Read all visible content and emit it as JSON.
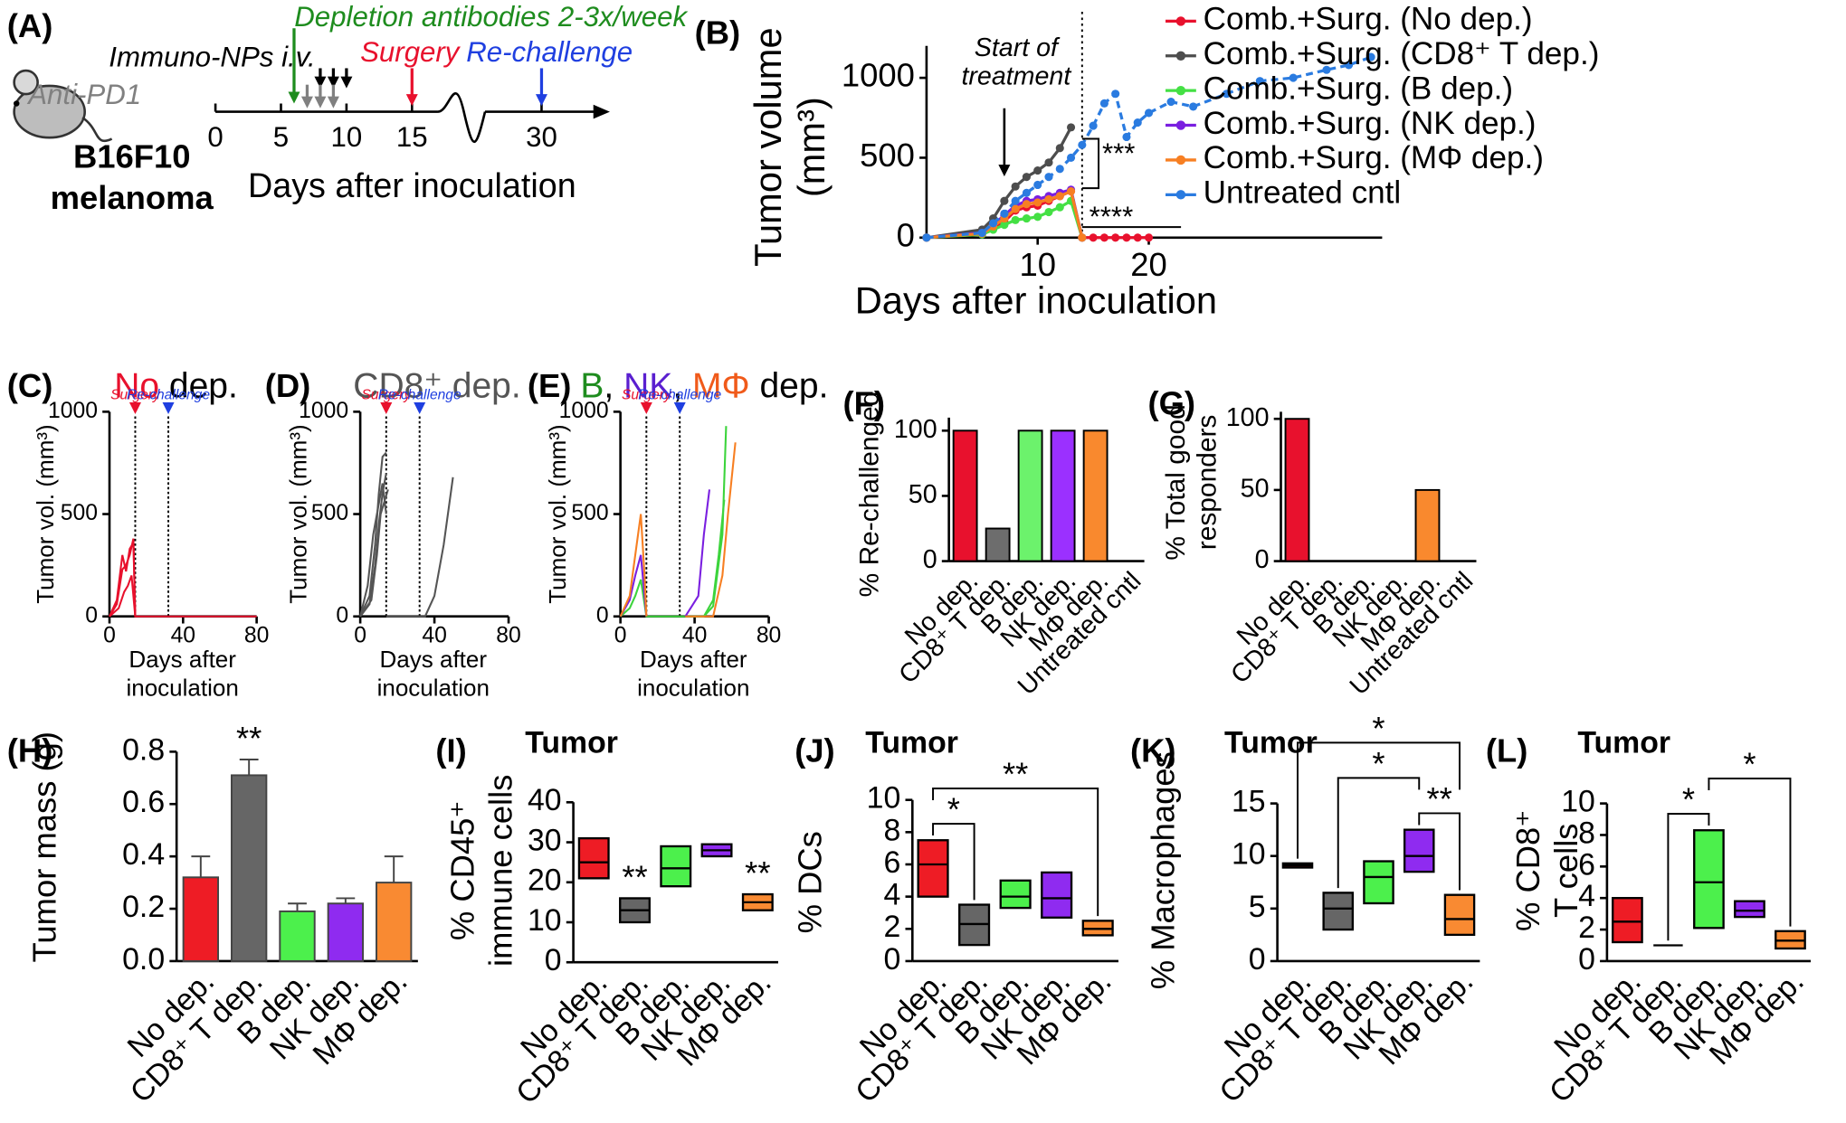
{
  "schematic": {
    "panel": "(A)",
    "model": [
      "B16F10",
      "melanoma"
    ],
    "xlabel": "Days after inoculation",
    "ticks": [
      0,
      5,
      10,
      15,
      30
    ],
    "events": [
      {
        "label": "Depletion antibodies 2-3x/week",
        "color": "#1e8c1e",
        "days": [
          6
        ]
      },
      {
        "label": "Immuno-NPs i.v.",
        "color": "#000000",
        "days": [
          8,
          9,
          10
        ]
      },
      {
        "label": "Anti-PD1",
        "color": "#808080",
        "days": [
          7,
          8,
          9
        ]
      },
      {
        "label": "Surgery",
        "color": "#e8112d",
        "days": [
          15
        ]
      },
      {
        "label": "Re-challenge",
        "color": "#1f3fe0",
        "days": [
          30
        ]
      }
    ]
  },
  "chart_data": [
    {
      "type": "line",
      "panel": "(B)",
      "ylabel": [
        "Tumor volume",
        "(mm³)"
      ],
      "xlabel": [
        "Days after inoculation"
      ],
      "xlim": [
        0,
        41
      ],
      "ylim": [
        0,
        1200
      ],
      "xticks": [
        10,
        20
      ],
      "yticks": [
        0,
        500,
        1000
      ],
      "dots": true,
      "legend": "right",
      "vline": 14,
      "annotation": {
        "text": [
          "Start of",
          "treatment"
        ],
        "x": 7
      },
      "significance": [
        "***",
        "****"
      ],
      "series": [
        {
          "name": "Comb.+Surg. (No dep.)",
          "color": "#e8112d",
          "x": [
            0,
            5,
            6,
            7,
            8,
            9,
            10,
            11,
            12,
            13,
            14,
            15,
            16,
            17,
            18,
            19,
            20
          ],
          "values": [
            0,
            30,
            60,
            100,
            170,
            190,
            200,
            230,
            260,
            290,
            0,
            0,
            0,
            0,
            0,
            0,
            0
          ]
        },
        {
          "name": "Comb.+Surg. (CD8⁺ T dep.)",
          "color": "#4d4d4d",
          "x": [
            0,
            5,
            6,
            7,
            8,
            9,
            10,
            11,
            12,
            13
          ],
          "values": [
            0,
            50,
            120,
            230,
            320,
            380,
            420,
            470,
            560,
            690
          ]
        },
        {
          "name": "Comb.+Surg. (B dep.)",
          "color": "#44e044",
          "x": [
            0,
            5,
            6,
            7,
            8,
            9,
            10,
            11,
            12,
            13,
            14
          ],
          "values": [
            0,
            20,
            50,
            80,
            110,
            120,
            130,
            160,
            190,
            230,
            0
          ]
        },
        {
          "name": "Comb.+Surg. (NK dep.)",
          "color": "#7a1fe0",
          "x": [
            0,
            5,
            6,
            7,
            8,
            9,
            10,
            11,
            12,
            13,
            14
          ],
          "values": [
            0,
            30,
            80,
            140,
            200,
            230,
            240,
            260,
            280,
            300,
            0
          ]
        },
        {
          "name": "Comb.+Surg. (MΦ dep.)",
          "color": "#f77f22",
          "x": [
            0,
            5,
            6,
            7,
            8,
            9,
            10,
            11,
            12,
            13,
            14
          ],
          "values": [
            0,
            25,
            70,
            120,
            180,
            210,
            220,
            240,
            260,
            290,
            0
          ]
        },
        {
          "name": "Untreated cntl",
          "color": "#2a7be0",
          "line_style": "dashed",
          "x": [
            0,
            5,
            6,
            7,
            8,
            9,
            10,
            11,
            12,
            13,
            14,
            15,
            16,
            17,
            18,
            19,
            20,
            22,
            24,
            27,
            30,
            33,
            36,
            38,
            40
          ],
          "values": [
            0,
            30,
            90,
            150,
            230,
            280,
            330,
            380,
            430,
            500,
            580,
            700,
            840,
            900,
            630,
            720,
            780,
            850,
            820,
            900,
            980,
            1000,
            1050,
            1080,
            1130
          ]
        }
      ]
    },
    {
      "type": "line",
      "panel": "(C)",
      "title_parts": [
        {
          "text": "No",
          "color": "#e8112d"
        },
        {
          "text": " dep.",
          "color": "#000000"
        }
      ],
      "ylabel": [
        "Tumor vol. (mm³)"
      ],
      "xlabel": [
        "Days after",
        "inoculation"
      ],
      "xlim": [
        0,
        80
      ],
      "ylim": [
        0,
        1000
      ],
      "xticks": [
        0,
        40,
        80
      ],
      "yticks": [
        0,
        500,
        1000
      ],
      "markers": [
        {
          "x": 14,
          "label": "Surgery",
          "color": "#e8112d"
        },
        {
          "x": 32,
          "label": "Re-challenge",
          "color": "#1f3fe0"
        }
      ],
      "series": [
        {
          "color": "#e8112d",
          "x": [
            0,
            4,
            7,
            9,
            11,
            13,
            14,
            80
          ],
          "values": [
            0,
            60,
            230,
            250,
            300,
            380,
            0,
            0
          ]
        },
        {
          "color": "#e8112d",
          "x": [
            0,
            4,
            7,
            9,
            11,
            13,
            14
          ],
          "values": [
            0,
            80,
            300,
            220,
            330,
            360,
            0
          ]
        },
        {
          "color": "#e8112d",
          "x": [
            0,
            5,
            8,
            10,
            12,
            14
          ],
          "values": [
            0,
            40,
            120,
            150,
            200,
            0
          ]
        }
      ]
    },
    {
      "type": "line",
      "panel": "(D)",
      "title_parts": [
        {
          "text": "CD8⁺ dep.",
          "color": "#555555"
        }
      ],
      "ylabel": [
        "Tumor vol. (mm³)"
      ],
      "xlabel": [
        "Days after",
        "inoculation"
      ],
      "xlim": [
        0,
        80
      ],
      "ylim": [
        0,
        1000
      ],
      "xticks": [
        0,
        40,
        80
      ],
      "yticks": [
        0,
        500,
        1000
      ],
      "markers": [
        {
          "x": 14,
          "label": "Surgery",
          "color": "#e8112d"
        },
        {
          "x": 32,
          "label": "Re-challenge",
          "color": "#1f3fe0"
        }
      ],
      "series": [
        {
          "color": "#555555",
          "x": [
            0,
            5,
            8,
            10,
            12,
            14
          ],
          "values": [
            0,
            100,
            350,
            600,
            780,
            800
          ]
        },
        {
          "color": "#555555",
          "x": [
            0,
            5,
            8,
            10,
            12,
            14
          ],
          "values": [
            0,
            60,
            250,
            450,
            600,
            700
          ]
        },
        {
          "color": "#555555",
          "x": [
            0,
            6,
            9,
            11,
            13,
            15
          ],
          "values": [
            0,
            80,
            300,
            500,
            560,
            620
          ]
        },
        {
          "color": "#555555",
          "x": [
            0,
            4,
            7,
            10,
            12,
            14
          ],
          "values": [
            0,
            150,
            400,
            550,
            650,
            500
          ]
        },
        {
          "color": "#555555",
          "x": [
            14,
            35,
            40,
            45,
            50
          ],
          "values": [
            0,
            0,
            100,
            350,
            680
          ]
        }
      ]
    },
    {
      "type": "line",
      "panel": "(E)",
      "title_parts": [
        {
          "text": "B",
          "color": "#1e8c1e"
        },
        {
          "text": ", ",
          "color": "#000000"
        },
        {
          "text": "NK",
          "color": "#5a1fd0"
        },
        {
          "text": ", ",
          "color": "#000000"
        },
        {
          "text": "MΦ",
          "color": "#f05a1a"
        },
        {
          "text": " dep.",
          "color": "#000000"
        }
      ],
      "ylabel": [
        "Tumor vol. (mm³)"
      ],
      "xlabel": [
        "Days after",
        "inoculation"
      ],
      "xlim": [
        0,
        80
      ],
      "ylim": [
        0,
        1000
      ],
      "xticks": [
        0,
        40,
        80
      ],
      "yticks": [
        0,
        500,
        1000
      ],
      "markers": [
        {
          "x": 14,
          "label": "Surgery",
          "color": "#e8112d"
        },
        {
          "x": 32,
          "label": "Re-challenge",
          "color": "#1f3fe0"
        }
      ],
      "series": [
        {
          "color": "#3cd43c",
          "x": [
            0,
            5,
            8,
            11,
            14,
            35,
            45,
            50,
            55,
            57
          ],
          "values": [
            0,
            40,
            100,
            180,
            0,
            0,
            0,
            50,
            400,
            930
          ]
        },
        {
          "color": "#3cd43c",
          "x": [
            35,
            45,
            50,
            53,
            56
          ],
          "values": [
            0,
            0,
            80,
            300,
            570
          ]
        },
        {
          "color": "#7a1fe0",
          "x": [
            0,
            5,
            8,
            11,
            14
          ],
          "values": [
            0,
            80,
            200,
            300,
            0
          ]
        },
        {
          "color": "#7a1fe0",
          "x": [
            35,
            42,
            45,
            48
          ],
          "values": [
            0,
            100,
            400,
            620
          ]
        },
        {
          "color": "#f77f22",
          "x": [
            0,
            5,
            8,
            11,
            13,
            14
          ],
          "values": [
            0,
            100,
            300,
            500,
            200,
            0
          ]
        },
        {
          "color": "#f77f22",
          "x": [
            35,
            50,
            55,
            58,
            62
          ],
          "values": [
            0,
            0,
            200,
            500,
            850
          ]
        }
      ]
    },
    {
      "type": "bar",
      "panel": "(F)",
      "ylabel": [
        "% Re-challenged"
      ],
      "categories": [
        "No dep.",
        "CD8⁺ T dep.",
        "B dep.",
        "NK dep.",
        "MΦ dep.",
        "Untreated cntl"
      ],
      "values": [
        100,
        25,
        100,
        100,
        100,
        0
      ],
      "colors": [
        "#e8112d",
        "#6d6d6d",
        "#6cf26c",
        "#9b30ff",
        "#f9892e",
        "#2a7be0"
      ],
      "outline": "#000000",
      "ylim": [
        0,
        110
      ],
      "yticks": [
        0,
        50,
        100
      ]
    },
    {
      "type": "bar",
      "panel": "(G)",
      "ylabel": [
        "% Total good",
        "responders"
      ],
      "categories": [
        "No dep.",
        "CD8⁺ T dep.",
        "B dep.",
        "NK dep.",
        "MΦ dep.",
        "Untreated cntl"
      ],
      "values": [
        100,
        0,
        0,
        0,
        50,
        0
      ],
      "colors": [
        "#e8112d",
        "#6d6d6d",
        "#6cf26c",
        "#9b30ff",
        "#f9892e",
        "#2a7be0"
      ],
      "outline": "#000000",
      "ylim": [
        0,
        105
      ],
      "yticks": [
        0,
        50,
        100
      ]
    },
    {
      "type": "bar",
      "panel": "(H)",
      "ylabel": [
        "Tumor mass (g)"
      ],
      "categories": [
        "No dep.",
        "CD8⁺ T dep.",
        "B dep.",
        "NK dep.",
        "MΦ dep."
      ],
      "values": [
        0.32,
        0.71,
        0.19,
        0.22,
        0.3
      ],
      "errors": [
        0.08,
        0.06,
        0.03,
        0.02,
        0.1
      ],
      "colors": [
        "#ee1c25",
        "#666666",
        "#4cf04c",
        "#8f2bf0",
        "#f98a32"
      ],
      "outline": "#444444",
      "ylim": [
        0,
        0.8
      ],
      "yticks": [
        {
          "value": 0,
          "label": "0.0"
        },
        0.2,
        0.4,
        0.6,
        0.8
      ],
      "sig": [
        {
          "category": "CD8⁺ T dep.",
          "label": "**"
        }
      ]
    },
    {
      "type": "box",
      "panel": "(I)",
      "title": "Tumor",
      "ylabel": [
        "% CD45⁺",
        "immune cells"
      ],
      "categories": [
        "No dep.",
        "CD8⁺ T dep.",
        "B dep.",
        "NK dep.",
        "MΦ dep."
      ],
      "low": [
        21,
        10,
        19,
        26.5,
        13
      ],
      "median": [
        25,
        13,
        23.5,
        28,
        15
      ],
      "high": [
        31,
        16,
        29,
        29.5,
        17
      ],
      "colors": [
        "#ee1c25",
        "#666666",
        "#4cf04c",
        "#8f2bf0",
        "#f98a32"
      ],
      "ylim": [
        0,
        40
      ],
      "yticks": [
        0,
        10,
        20,
        30,
        40
      ],
      "sig": [
        {
          "category": "CD8⁺ T dep.",
          "label": "**"
        },
        {
          "category": "MΦ dep.",
          "label": "**"
        }
      ]
    },
    {
      "type": "box",
      "panel": "(J)",
      "title": "Tumor",
      "ylabel": [
        "% DCs"
      ],
      "categories": [
        "No dep.",
        "CD8⁺ T dep.",
        "B dep.",
        "NK dep.",
        "MΦ dep."
      ],
      "low": [
        4,
        1,
        3.3,
        2.7,
        1.6
      ],
      "median": [
        6,
        2.3,
        4,
        3.9,
        2
      ],
      "high": [
        7.5,
        3.5,
        5,
        5.5,
        2.5
      ],
      "colors": [
        "#ee1c25",
        "#666666",
        "#4cf04c",
        "#8f2bf0",
        "#f98a32"
      ],
      "ylim": [
        0,
        10
      ],
      "yticks": [
        0,
        2,
        4,
        6,
        8,
        10
      ],
      "brackets": [
        {
          "between": [
            "No dep.",
            "CD8⁺ T dep."
          ],
          "label": "*"
        },
        {
          "between": [
            "No dep.",
            "MΦ dep."
          ],
          "label": "**"
        }
      ]
    },
    {
      "type": "box",
      "panel": "(K)",
      "title": "Tumor",
      "ylabel": [
        "% Macrophages"
      ],
      "categories": [
        "No dep.",
        "CD8⁺ T dep.",
        "B dep.",
        "NK dep.",
        "MΦ dep."
      ],
      "low": [
        8.9,
        3,
        5.5,
        8.5,
        2.5
      ],
      "median": [
        9.1,
        5,
        8,
        10,
        4
      ],
      "high": [
        9.3,
        6.5,
        9.5,
        12.5,
        6.3
      ],
      "colors": [
        "#ee1c25",
        "#666666",
        "#4cf04c",
        "#8f2bf0",
        "#f98a32"
      ],
      "ylim": [
        0,
        15
      ],
      "yticks": [
        0,
        5,
        10,
        15
      ],
      "brackets": [
        {
          "between": [
            "NK dep.",
            "MΦ dep."
          ],
          "label": "**"
        },
        {
          "between": [
            "CD8⁺ T dep.",
            "NK dep."
          ],
          "label": "*"
        },
        {
          "between": [
            "No dep.",
            "MΦ dep."
          ],
          "label": "*"
        }
      ]
    },
    {
      "type": "box",
      "panel": "(L)",
      "title": "Tumor",
      "ylabel": [
        "% CD8⁺",
        "T cells"
      ],
      "categories": [
        "No dep.",
        "CD8⁺ T dep.",
        "B dep.",
        "NK dep.",
        "MΦ dep."
      ],
      "low": [
        1.2,
        1,
        2.1,
        2.8,
        0.8
      ],
      "median": [
        2.5,
        1,
        5,
        3.2,
        1.3
      ],
      "high": [
        4,
        1,
        8.3,
        3.8,
        1.9
      ],
      "colors": [
        "#ee1c25",
        "#666666",
        "#4cf04c",
        "#8f2bf0",
        "#f98a32"
      ],
      "ylim": [
        0,
        10
      ],
      "yticks": [
        0,
        2,
        4,
        6,
        8,
        10
      ],
      "brackets": [
        {
          "between": [
            "CD8⁺ T dep.",
            "B dep."
          ],
          "label": "*"
        },
        {
          "between": [
            "B dep.",
            "MΦ dep."
          ],
          "label": "*"
        }
      ]
    }
  ]
}
